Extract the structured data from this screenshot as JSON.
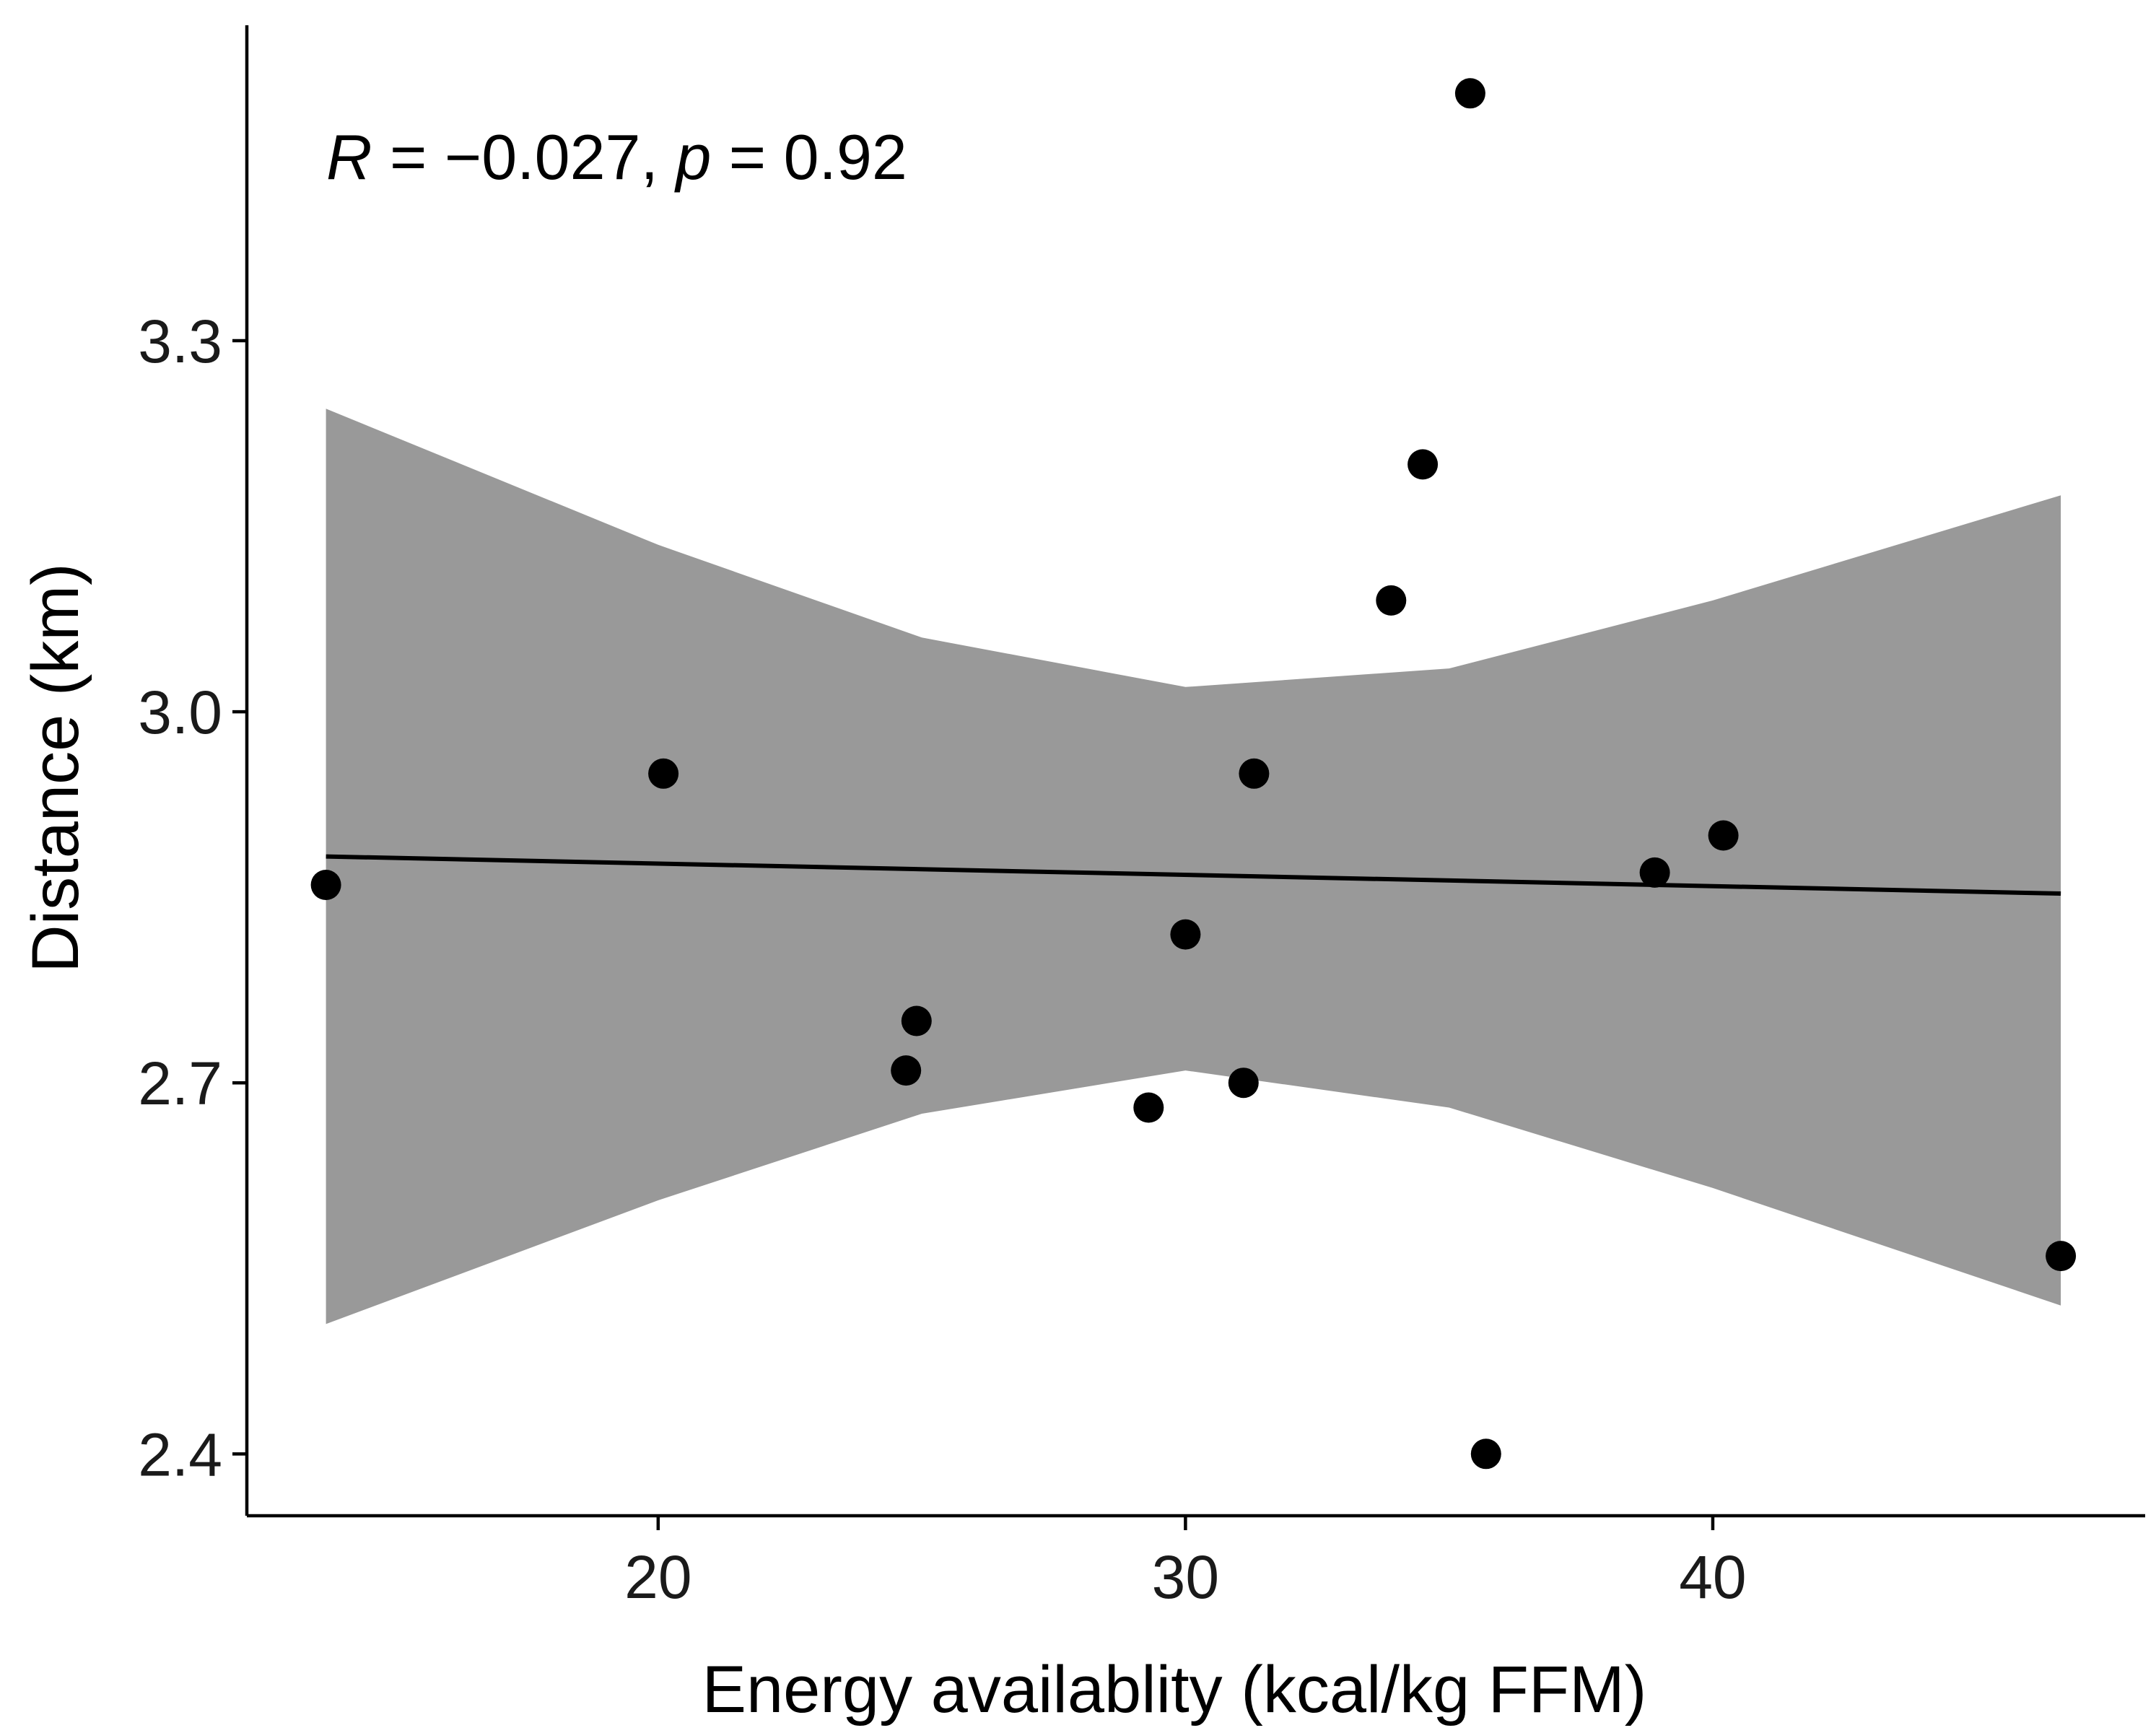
{
  "chart_data": {
    "type": "scatter",
    "title": "",
    "xlabel": "Energy availablity (kcal/kg FFM)",
    "ylabel": "Distance (km)",
    "xlim": [
      12.2,
      48.2
    ],
    "ylim": [
      2.35,
      3.555
    ],
    "x_ticks": [
      20,
      30,
      40
    ],
    "x_tick_labels": [
      "20",
      "30",
      "40"
    ],
    "y_ticks": [
      2.4,
      2.7,
      3.0,
      3.3
    ],
    "y_tick_labels": [
      "2.4",
      "2.7",
      "3.0",
      "3.3"
    ],
    "grid": false,
    "annotation": {
      "r_symbol": "R",
      "r_text": " = −0.027, ",
      "p_symbol": "p",
      "p_text": " = 0.92"
    },
    "points": [
      {
        "x": 13.7,
        "y": 2.86
      },
      {
        "x": 20.1,
        "y": 2.95
      },
      {
        "x": 24.7,
        "y": 2.71
      },
      {
        "x": 24.9,
        "y": 2.75
      },
      {
        "x": 29.3,
        "y": 2.68
      },
      {
        "x": 30.0,
        "y": 2.82
      },
      {
        "x": 31.1,
        "y": 2.7
      },
      {
        "x": 31.3,
        "y": 2.95
      },
      {
        "x": 33.9,
        "y": 3.09
      },
      {
        "x": 34.5,
        "y": 3.2
      },
      {
        "x": 35.4,
        "y": 3.5
      },
      {
        "x": 35.7,
        "y": 2.4
      },
      {
        "x": 38.9,
        "y": 2.87
      },
      {
        "x": 40.2,
        "y": 2.9
      },
      {
        "x": 46.6,
        "y": 2.56
      }
    ],
    "regression_line": {
      "x": [
        13.7,
        46.6
      ],
      "y": [
        2.883,
        2.853
      ]
    },
    "confidence_band": {
      "x": [
        13.7,
        20,
        25,
        30,
        35,
        40,
        46.6
      ],
      "upper": [
        3.245,
        3.135,
        3.06,
        3.02,
        3.035,
        3.09,
        3.175
      ],
      "lower": [
        2.505,
        2.605,
        2.675,
        2.71,
        2.68,
        2.615,
        2.52
      ]
    },
    "colors": {
      "points": "#000000",
      "line": "#000000",
      "band": "#999999"
    }
  }
}
